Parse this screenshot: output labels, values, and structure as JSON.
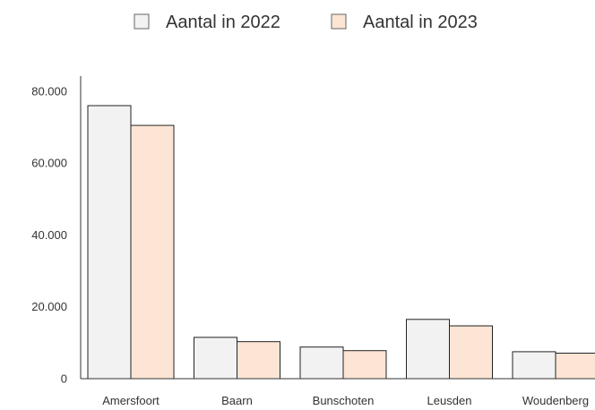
{
  "chart_data": {
    "type": "bar",
    "categories": [
      "Amersfoort",
      "Baarn",
      "Bunschoten",
      "Leusden",
      "Woudenberg"
    ],
    "series": [
      {
        "name": "Aantal in 2022",
        "values": [
          76000,
          11500,
          8800,
          16500,
          7500
        ],
        "color": "#f2f2f2"
      },
      {
        "name": "Aantal in 2023",
        "values": [
          70500,
          10300,
          7800,
          14700,
          7100
        ],
        "color": "#fce5d4"
      }
    ],
    "y_ticks": [
      {
        "value": 0,
        "label": "0"
      },
      {
        "value": 20000,
        "label": "20.000"
      },
      {
        "value": 40000,
        "label": "40.000"
      },
      {
        "value": 60000,
        "label": "60.000"
      },
      {
        "value": 80000,
        "label": "80.000"
      }
    ],
    "ylim": [
      0,
      88000
    ],
    "grid": false,
    "legend_position": "top",
    "bar_outline_color": "#222222",
    "axis_color": "#333333"
  }
}
